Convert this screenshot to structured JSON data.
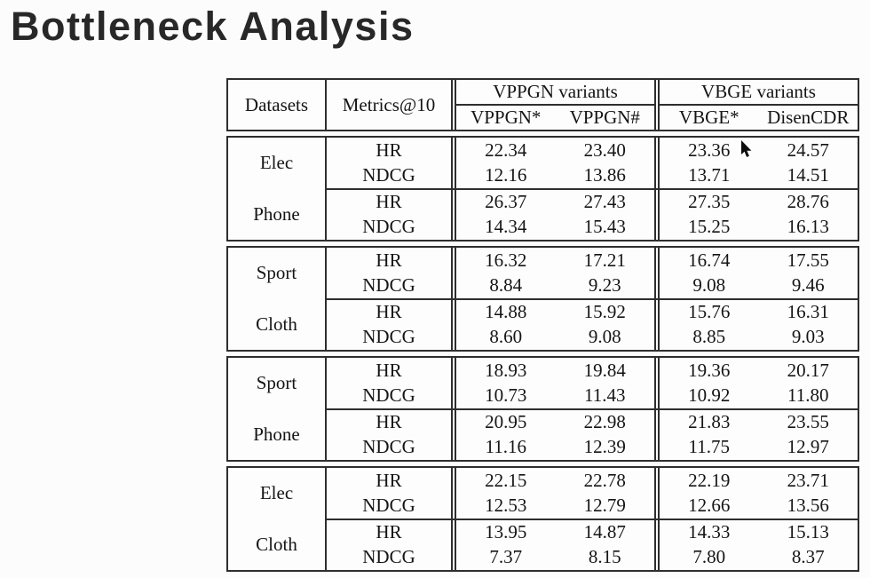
{
  "slide": {
    "title": "Bottleneck Analysis"
  },
  "colors": {
    "background": "#fcfcfc",
    "table_border": "#2e2e2e",
    "text": "#151515",
    "title": "#282828"
  },
  "cursor": {
    "icon": "arrow-cursor"
  },
  "table": {
    "header": {
      "datasets_label": "Datasets",
      "metrics_label": "Metrics@10",
      "groups": [
        {
          "label": "VPPGN variants",
          "cols": [
            "VPPGN*",
            "VPPGN#"
          ]
        },
        {
          "label": "VBGE variants",
          "cols": [
            "VBGE*",
            "DisenCDR"
          ]
        }
      ]
    },
    "blocks": [
      {
        "subs": [
          {
            "dataset": "Elec",
            "rows": [
              {
                "metric": "HR",
                "cells": [
                  "22.34",
                  "23.40",
                  "23.36",
                  "24.57"
                ]
              },
              {
                "metric": "NDCG",
                "cells": [
                  "12.16",
                  "13.86",
                  "13.71",
                  "14.51"
                ]
              }
            ]
          },
          {
            "dataset": "Phone",
            "rows": [
              {
                "metric": "HR",
                "cells": [
                  "26.37",
                  "27.43",
                  "27.35",
                  "28.76"
                ]
              },
              {
                "metric": "NDCG",
                "cells": [
                  "14.34",
                  "15.43",
                  "15.25",
                  "16.13"
                ]
              }
            ]
          }
        ]
      },
      {
        "subs": [
          {
            "dataset": "Sport",
            "rows": [
              {
                "metric": "HR",
                "cells": [
                  "16.32",
                  "17.21",
                  "16.74",
                  "17.55"
                ]
              },
              {
                "metric": "NDCG",
                "cells": [
                  "8.84",
                  "9.23",
                  "9.08",
                  "9.46"
                ]
              }
            ]
          },
          {
            "dataset": "Cloth",
            "rows": [
              {
                "metric": "HR",
                "cells": [
                  "14.88",
                  "15.92",
                  "15.76",
                  "16.31"
                ]
              },
              {
                "metric": "NDCG",
                "cells": [
                  "8.60",
                  "9.08",
                  "8.85",
                  "9.03"
                ]
              }
            ]
          }
        ]
      },
      {
        "subs": [
          {
            "dataset": "Sport",
            "rows": [
              {
                "metric": "HR",
                "cells": [
                  "18.93",
                  "19.84",
                  "19.36",
                  "20.17"
                ]
              },
              {
                "metric": "NDCG",
                "cells": [
                  "10.73",
                  "11.43",
                  "10.92",
                  "11.80"
                ]
              }
            ]
          },
          {
            "dataset": "Phone",
            "rows": [
              {
                "metric": "HR",
                "cells": [
                  "20.95",
                  "22.98",
                  "21.83",
                  "23.55"
                ]
              },
              {
                "metric": "NDCG",
                "cells": [
                  "11.16",
                  "12.39",
                  "11.75",
                  "12.97"
                ]
              }
            ]
          }
        ]
      },
      {
        "subs": [
          {
            "dataset": "Elec",
            "rows": [
              {
                "metric": "HR",
                "cells": [
                  "22.15",
                  "22.78",
                  "22.19",
                  "23.71"
                ]
              },
              {
                "metric": "NDCG",
                "cells": [
                  "12.53",
                  "12.79",
                  "12.66",
                  "13.56"
                ]
              }
            ]
          },
          {
            "dataset": "Cloth",
            "rows": [
              {
                "metric": "HR",
                "cells": [
                  "13.95",
                  "14.87",
                  "14.33",
                  "15.13"
                ]
              },
              {
                "metric": "NDCG",
                "cells": [
                  "7.37",
                  "8.15",
                  "7.80",
                  "8.37"
                ]
              }
            ]
          }
        ]
      }
    ]
  }
}
